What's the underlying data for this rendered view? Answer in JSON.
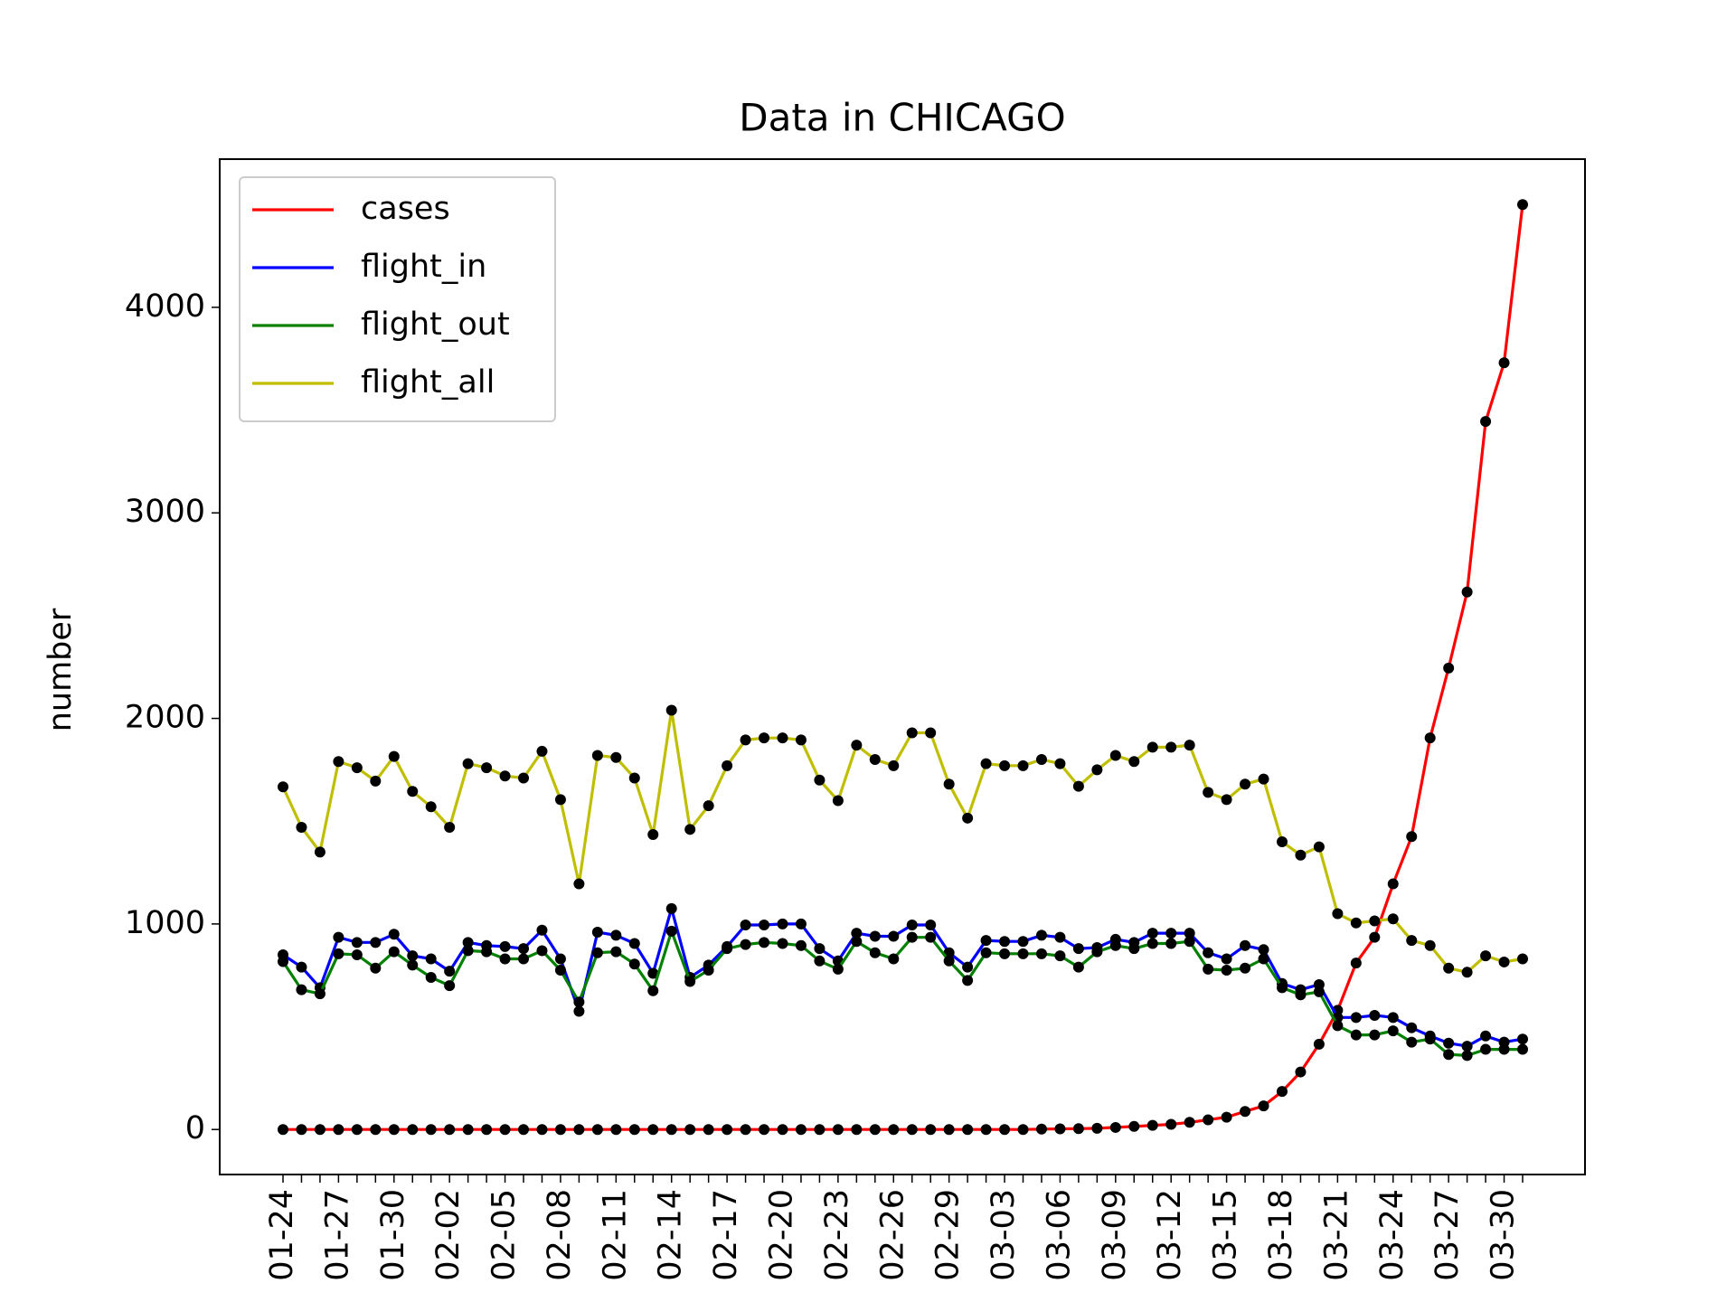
{
  "chart_data": {
    "type": "line",
    "title": "Data in CHICAGO",
    "ylabel": "number",
    "categories": [
      "01-24",
      null,
      null,
      "01-27",
      null,
      null,
      "01-30",
      null,
      null,
      "02-02",
      null,
      null,
      "02-05",
      null,
      null,
      "02-08",
      null,
      null,
      "02-11",
      null,
      null,
      "02-14",
      null,
      null,
      "02-17",
      null,
      null,
      "02-20",
      null,
      null,
      "02-23",
      null,
      null,
      "02-26",
      null,
      null,
      "02-29",
      null,
      null,
      "03-03",
      null,
      null,
      "03-06",
      null,
      null,
      "03-09",
      null,
      null,
      "03-12",
      null,
      null,
      "03-15",
      null,
      null,
      "03-18",
      null,
      null,
      "03-21",
      null,
      null,
      "03-24",
      null,
      null,
      "03-27",
      null,
      null,
      "03-30",
      null
    ],
    "series": [
      {
        "name": "cases",
        "color": "#ff0000",
        "values": [
          0,
          0,
          0,
          0,
          0,
          0,
          0,
          0,
          0,
          0,
          0,
          0,
          0,
          0,
          0,
          0,
          0,
          0,
          0,
          0,
          0,
          0,
          0,
          0,
          0,
          0,
          0,
          0,
          0,
          0,
          0,
          0,
          0,
          0,
          0,
          0,
          0,
          0,
          0,
          0,
          0,
          2,
          3,
          4,
          6,
          10,
          15,
          20,
          25,
          35,
          47,
          60,
          88,
          115,
          185,
          280,
          415,
          580,
          810,
          935,
          1195,
          1425,
          1905,
          2245,
          2615,
          3445,
          3730,
          4500
        ]
      },
      {
        "name": "flight_in",
        "color": "#0000ff",
        "values": [
          850,
          790,
          690,
          935,
          910,
          910,
          950,
          845,
          830,
          770,
          910,
          895,
          890,
          880,
          970,
          830,
          575,
          960,
          945,
          905,
          760,
          1075,
          740,
          800,
          890,
          995,
          995,
          1000,
          1000,
          880,
          820,
          955,
          940,
          940,
          995,
          995,
          860,
          790,
          920,
          915,
          915,
          945,
          935,
          880,
          885,
          925,
          910,
          955,
          955,
          955,
          860,
          830,
          895,
          875,
          710,
          680,
          705,
          545,
          545,
          555,
          545,
          495,
          455,
          420,
          405,
          455,
          425,
          440
        ]
      },
      {
        "name": "flight_out",
        "color": "#008000",
        "values": [
          817,
          680,
          660,
          855,
          850,
          785,
          865,
          800,
          740,
          700,
          870,
          865,
          830,
          830,
          870,
          775,
          620,
          860,
          865,
          805,
          675,
          965,
          720,
          775,
          880,
          900,
          910,
          905,
          895,
          820,
          780,
          915,
          860,
          830,
          935,
          935,
          820,
          725,
          860,
          855,
          855,
          855,
          845,
          790,
          865,
          895,
          880,
          905,
          905,
          915,
          780,
          775,
          785,
          830,
          690,
          655,
          670,
          505,
          460,
          460,
          480,
          425,
          440,
          365,
          360,
          390,
          390,
          390
        ]
      },
      {
        "name": "flight_all",
        "color": "#bfbf00",
        "values": [
          1667,
          1470,
          1350,
          1790,
          1760,
          1695,
          1815,
          1645,
          1570,
          1470,
          1780,
          1760,
          1720,
          1710,
          1840,
          1605,
          1195,
          1820,
          1810,
          1710,
          1435,
          2040,
          1460,
          1575,
          1770,
          1895,
          1905,
          1905,
          1895,
          1700,
          1600,
          1870,
          1800,
          1770,
          1930,
          1930,
          1680,
          1515,
          1780,
          1770,
          1770,
          1800,
          1780,
          1670,
          1750,
          1820,
          1790,
          1860,
          1860,
          1870,
          1640,
          1605,
          1680,
          1705,
          1400,
          1335,
          1375,
          1050,
          1005,
          1015,
          1025,
          920,
          895,
          785,
          765,
          845,
          815,
          830
        ]
      }
    ],
    "ylim": [
      -219,
      4721
    ],
    "yticks": [
      0,
      1000,
      2000,
      3000,
      4000
    ],
    "grid": false,
    "legend": "upper left",
    "marker_color": "#000000"
  }
}
